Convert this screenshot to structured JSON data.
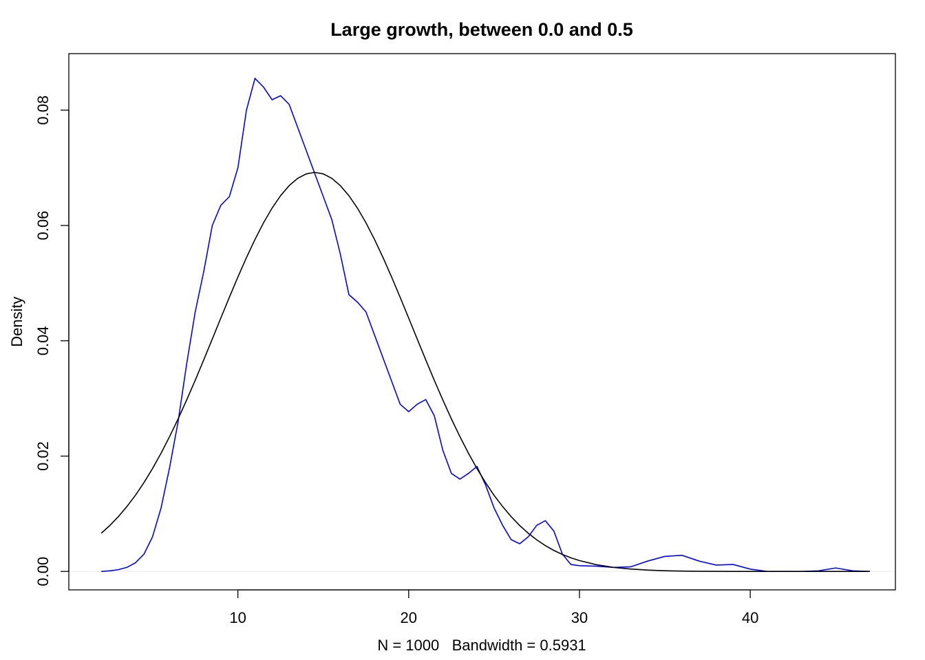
{
  "chart_data": {
    "type": "line",
    "title": "Large growth, between 0.0 and 0.5",
    "x_label": "N = 1000   Bandwidth = 0.5931",
    "y_label": "Density",
    "x": [
      2,
      2.5,
      3,
      3.5,
      4,
      4.5,
      5,
      5.5,
      6,
      6.5,
      7,
      7.5,
      8,
      8.5,
      9,
      9.5,
      10,
      10.5,
      11,
      11.5,
      12,
      12.5,
      13,
      13.5,
      14,
      14.5,
      15,
      15.5,
      16,
      16.5,
      17,
      17.5,
      18,
      18.5,
      19,
      19.5,
      20,
      20.5,
      21,
      21.5,
      22,
      22.5,
      23,
      23.5,
      24,
      24.5,
      25,
      25.5,
      26,
      26.5,
      27,
      27.5,
      28,
      28.5,
      29,
      29.5,
      30,
      31,
      32,
      33,
      34,
      35,
      36,
      37,
      38,
      39,
      40,
      41,
      42,
      43,
      44,
      45,
      46,
      47
    ],
    "series": [
      {
        "color": "#0000ff",
        "values": [
          0,
          0.0001,
          0.0003,
          0.0007,
          0.0015,
          0.003,
          0.006,
          0.011,
          0.018,
          0.026,
          0.036,
          0.045,
          0.052,
          0.06,
          0.0635,
          0.065,
          0.07,
          0.08,
          0.0855,
          0.084,
          0.0818,
          0.0825,
          0.081,
          0.077,
          0.073,
          0.069,
          0.065,
          0.061,
          0.055,
          0.048,
          0.0467,
          0.045,
          0.041,
          0.037,
          0.033,
          0.029,
          0.0277,
          0.029,
          0.0298,
          0.027,
          0.021,
          0.017,
          0.016,
          0.017,
          0.0182,
          0.015,
          0.011,
          0.008,
          0.0055,
          0.0048,
          0.006,
          0.008,
          0.0088,
          0.007,
          0.003,
          0.0012,
          0.001,
          0.0009,
          0.0007,
          0.0008,
          0.0018,
          0.0026,
          0.0028,
          0.0018,
          0.0011,
          0.0012,
          0.0004,
          0,
          0,
          0,
          0.0001,
          0.0006,
          0.0001,
          0
        ]
      },
      {
        "color": "#000000",
        "values": [
          0.00662,
          0.00796,
          0.0095,
          0.01125,
          0.0132,
          0.01541,
          0.01784,
          0.0205,
          0.02338,
          0.02646,
          0.02973,
          0.03315,
          0.03669,
          0.0403,
          0.04394,
          0.04754,
          0.05106,
          0.05442,
          0.05757,
          0.06045,
          0.063,
          0.06517,
          0.0669,
          0.06817,
          0.06894,
          0.0692,
          0.06894,
          0.06817,
          0.0669,
          0.06517,
          0.063,
          0.06045,
          0.05757,
          0.05442,
          0.05106,
          0.04754,
          0.04394,
          0.0403,
          0.03669,
          0.03315,
          0.02973,
          0.02646,
          0.02338,
          0.0205,
          0.01784,
          0.01541,
          0.0132,
          0.01125,
          0.0095,
          0.00796,
          0.00662,
          0.00547,
          0.00448,
          0.00364,
          0.00294,
          0.00236,
          0.00188,
          0.00116,
          0.0007,
          0.00041,
          0.00023,
          0.00012,
          6e-05,
          3e-05,
          1e-05,
          0,
          0,
          0,
          0,
          0,
          0,
          0,
          0,
          0
        ]
      }
    ],
    "xlim": [
      0.1,
      48.5
    ],
    "ylim": [
      -0.0032,
      0.0898
    ],
    "xticks": [
      10,
      20,
      30,
      40
    ],
    "yticks": [
      {
        "value": 0,
        "label": "0.00"
      },
      {
        "value": 0.02,
        "label": "0.02"
      },
      {
        "value": 0.04,
        "label": "0.04"
      },
      {
        "value": 0.06,
        "label": "0.06"
      },
      {
        "value": 0.08,
        "label": "0.08"
      }
    ],
    "zero_line": true
  }
}
